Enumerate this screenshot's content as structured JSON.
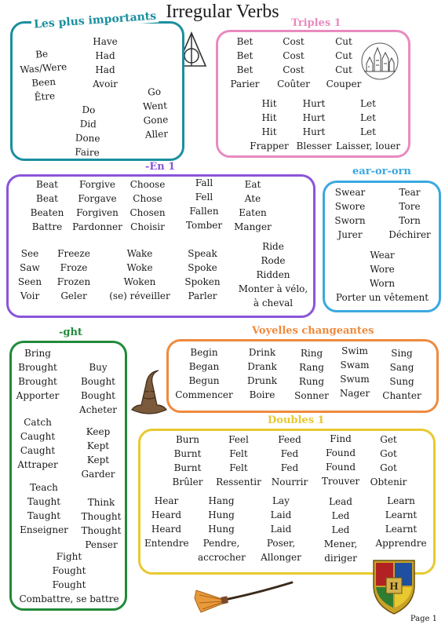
{
  "title": "Irregular Verbs",
  "page_label": "Page 1",
  "colors": {
    "teal": "#1b8fa0",
    "pink": "#e98ac0",
    "purple": "#8a55d9",
    "blue": "#3aa8e0",
    "green": "#218a3a",
    "orange": "#ef8a3e",
    "yellow": "#e8c930"
  },
  "sections": {
    "plus_importants": {
      "title": "Les plus importants",
      "groups": [
        [
          "Be",
          "Was/Were",
          "Been",
          "Être"
        ],
        [
          "Have",
          "Had",
          "Had",
          "Avoir"
        ],
        [
          "Do",
          "Did",
          "Done",
          "Faire"
        ],
        [
          "Go",
          "Went",
          "Gone",
          "Aller"
        ]
      ]
    },
    "triples": {
      "title": "Triples 1",
      "groups": [
        [
          "Bet",
          "Bet",
          "Bet",
          "Parier"
        ],
        [
          "Cost",
          "Cost",
          "Cost",
          "Coûter"
        ],
        [
          "Cut",
          "Cut",
          "Cut",
          "Couper"
        ],
        [
          "Hit",
          "Hit",
          "Hit",
          "Frapper"
        ],
        [
          "Hurt",
          "Hurt",
          "Hurt",
          "Blesser"
        ],
        [
          "Let",
          "Let",
          "Let",
          "Laisser, louer"
        ]
      ]
    },
    "en": {
      "title": "-En 1",
      "groups": [
        [
          "Beat",
          "Beat",
          "Beaten",
          "Battre"
        ],
        [
          "Forgive",
          "Forgave",
          "Forgiven",
          "Pardonner"
        ],
        [
          "Choose",
          "Chose",
          "Chosen",
          "Choisir"
        ],
        [
          "Fall",
          "Fell",
          "Fallen",
          "Tomber"
        ],
        [
          "Eat",
          "Ate",
          "Eaten",
          "Manger"
        ],
        [
          "See",
          "Saw",
          "Seen",
          "Voir"
        ],
        [
          "Freeze",
          "Froze",
          "Frozen",
          "Geler"
        ],
        [
          "Wake",
          "Woke",
          "Woken",
          "(se) réveiller"
        ],
        [
          "Speak",
          "Spoke",
          "Spoken",
          "Parler"
        ],
        [
          "Ride",
          "Rode",
          "Ridden",
          "Monter à vélo,",
          "à cheval"
        ]
      ]
    },
    "ear_or_orn": {
      "title": "ear-or-orn",
      "groups": [
        [
          "Swear",
          "Swore",
          "Sworn",
          "Jurer"
        ],
        [
          "Tear",
          "Tore",
          "Torn",
          "Déchirer"
        ],
        [
          "Wear",
          "Wore",
          "Worn",
          "Porter un vêtement"
        ]
      ]
    },
    "ght": {
      "title": "-ght",
      "groups": [
        [
          "Bring",
          "Brought",
          "Brought",
          "Apporter"
        ],
        [
          "Buy",
          "Bought",
          "Bought",
          "Acheter"
        ],
        [
          "Catch",
          "Caught",
          "Caught",
          "Attraper"
        ],
        [
          "Keep",
          "Kept",
          "Kept",
          "Garder"
        ],
        [
          "Teach",
          "Taught",
          "Taught",
          "Enseigner"
        ],
        [
          "Think",
          "Thought",
          "Thought",
          "Penser"
        ],
        [
          "Fight",
          "Fought",
          "Fought",
          "Combattre, se battre"
        ]
      ]
    },
    "voyelles": {
      "title": "Voyelles changeantes",
      "groups": [
        [
          "Begin",
          "Began",
          "Begun",
          "Commencer"
        ],
        [
          "Drink",
          "Drank",
          "Drunk",
          "Boire"
        ],
        [
          "Ring",
          "Rang",
          "Rung",
          "Sonner"
        ],
        [
          "Swim",
          "Swam",
          "Swum",
          "Nager"
        ],
        [
          "Sing",
          "Sang",
          "Sung",
          "Chanter"
        ]
      ]
    },
    "doubles": {
      "title": "Doubles 1",
      "groups": [
        [
          "Burn",
          "Burnt",
          "Burnt",
          "Brûler"
        ],
        [
          "Feel",
          "Felt",
          "Felt",
          "Ressentir"
        ],
        [
          "Feed",
          "Fed",
          "Fed",
          "Nourrir"
        ],
        [
          "Find",
          "Found",
          "Found",
          "Trouver"
        ],
        [
          "Get",
          "Got",
          "Got",
          "Obtenir"
        ],
        [
          "Hear",
          "Heard",
          "Heard",
          "Entendre"
        ],
        [
          "Hang",
          "Hung",
          "Hung",
          "Pendre,",
          "accrocher"
        ],
        [
          "Lay",
          "Laid",
          "Laid",
          "Poser,",
          "Allonger"
        ],
        [
          "Lead",
          "Led",
          "Led",
          "Mener,",
          "diriger"
        ],
        [
          "Learn",
          "Learnt",
          "Learnt",
          "Apprendre"
        ]
      ]
    }
  }
}
